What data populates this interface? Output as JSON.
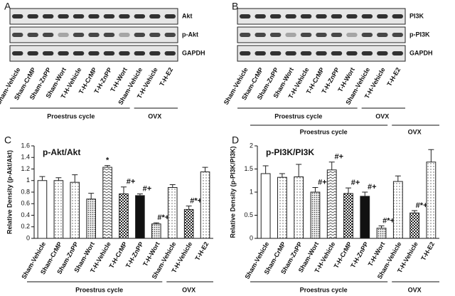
{
  "panels": [
    "A",
    "B",
    "C",
    "D"
  ],
  "blots": [
    {
      "bands": [
        "Akt",
        "p-Akt",
        "GAPDH"
      ],
      "lanes": [
        "Sham-Vehicle",
        "Sham-CrMP",
        "Sham-ZnPP",
        "Sham-Wort",
        "T-H-Vehicle",
        "T-H-CrMP",
        "T-H-ZnPP",
        "T-H-Wort",
        "Sham-Vehicle",
        "T-H-Vehicle",
        "T-H-E2"
      ],
      "groups": [
        "Proestrus cycle",
        "OVX"
      ]
    },
    {
      "bands": [
        "PI3K",
        "p-PI3K",
        "GAPDH"
      ],
      "lanes": [
        "Sham-Vehicle",
        "Sham-CrMP",
        "Sham-ZnPP",
        "Sham-Wort",
        "T-H-Vehicle",
        "T-H-CrMP",
        "T-H-ZnPP",
        "T-H-Wort",
        "Sham-Vehicle",
        "T-H-Vehicle",
        "T-H-E2"
      ],
      "groups": [
        "Proestrus cycle",
        "OVX"
      ]
    }
  ],
  "chart_data": [
    {
      "type": "bar",
      "title": "p-Akt/Akt",
      "ylabel": "Relative Density (p-Akt/Akt)",
      "categories": [
        "Sham-Vehicle",
        "Sham-CrMP",
        "Sham-ZnPP",
        "Sham-Wort",
        "T-H-Vehicle",
        "T-H-CrMP",
        "T-H-ZnPP",
        "T-H-Wort",
        "Sham-Vehicle",
        "T-H-Vehicle",
        "T-H-E2"
      ],
      "values": [
        1.0,
        1.0,
        0.97,
        0.68,
        1.23,
        0.77,
        0.74,
        0.25,
        0.88,
        0.5,
        1.15
      ],
      "errors": [
        0.07,
        0.05,
        0.13,
        0.1,
        0.03,
        0.12,
        0.03,
        0.02,
        0.05,
        0.06,
        0.08
      ],
      "annotations": [
        null,
        null,
        null,
        null,
        "*",
        "#+",
        "#+",
        "#*+",
        null,
        "#*+",
        null
      ],
      "groups": [
        "Proestrus cycle",
        "OVX"
      ],
      "ylim": [
        0,
        1.6
      ],
      "yticks": [
        0,
        0.2,
        0.4,
        0.6,
        0.8,
        1,
        1.2,
        1.4,
        1.6
      ]
    },
    {
      "type": "bar",
      "title": "p-PI3K/PI3K",
      "ylabel": "Relative Density (p-PI3K/PI3K)",
      "categories": [
        "Sham-Vehicle",
        "Sham-CrMP",
        "Sham-ZnPP",
        "Sham-Wort",
        "T-H-Vehicle",
        "T-H-CrMP",
        "T-H-ZnPP",
        "T-H-Wort",
        "Sham-Vehicle",
        "T-H-Vehicle",
        "T-H-E2"
      ],
      "values": [
        1.4,
        1.32,
        1.33,
        1.0,
        1.48,
        0.97,
        0.91,
        0.22,
        1.23,
        0.55,
        1.65
      ],
      "errors": [
        0.17,
        0.08,
        0.27,
        0.1,
        0.17,
        0.12,
        0.09,
        0.05,
        0.12,
        0.05,
        0.27
      ],
      "annotations": [
        null,
        null,
        null,
        "#+",
        "#+",
        "#+",
        "#+",
        "#*+",
        null,
        "#*+",
        null
      ],
      "groups": [
        "Proestrus cycle",
        "OVX"
      ],
      "ylim": [
        0,
        2
      ],
      "yticks": [
        0,
        0.5,
        1,
        1.5,
        2
      ]
    }
  ]
}
